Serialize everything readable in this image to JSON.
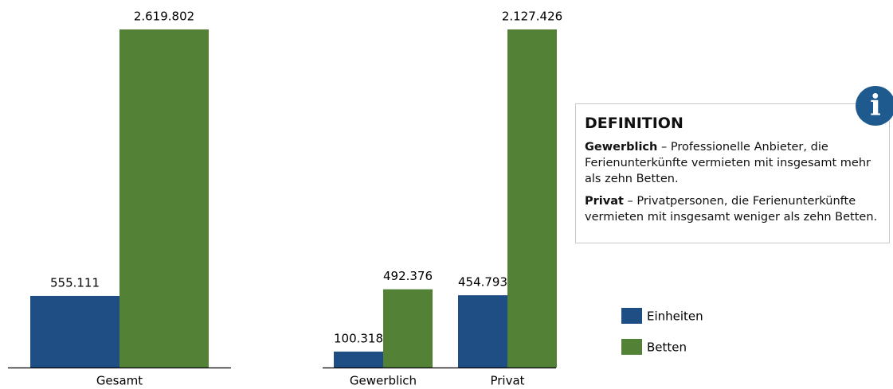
{
  "chart_data": [
    {
      "type": "bar",
      "categories": [
        "Gesamt"
      ],
      "series": [
        {
          "name": "Einheiten",
          "color": "#1f4e85",
          "values": [
            555111
          ],
          "value_labels": [
            "555.111"
          ]
        },
        {
          "name": "Betten",
          "color": "#538135",
          "values": [
            2619802
          ],
          "value_labels": [
            "2.619.802"
          ]
        }
      ],
      "ylim": [
        0,
        2619802
      ]
    },
    {
      "type": "bar",
      "categories": [
        "Gewerblich",
        "Privat"
      ],
      "series": [
        {
          "name": "Einheiten",
          "color": "#1f4e85",
          "values": [
            100318,
            454793
          ],
          "value_labels": [
            "100.318",
            "454.793"
          ]
        },
        {
          "name": "Betten",
          "color": "#538135",
          "values": [
            492376,
            2127426
          ],
          "value_labels": [
            "492.376",
            "2.127.426"
          ]
        }
      ],
      "ylim": [
        0,
        2127426
      ]
    }
  ],
  "definition": {
    "title": "DEFINITION",
    "items": [
      {
        "term": "Gewerblich",
        "text": " – Professionelle Anbieter, die Ferienunterkünfte vermieten mit insgesamt mehr als zehn Betten."
      },
      {
        "term": "Privat",
        "text": " – Privatpersonen, die Ferienunterkünfte vermieten mit insgesamt weniger als zehn Betten."
      }
    ]
  }
}
